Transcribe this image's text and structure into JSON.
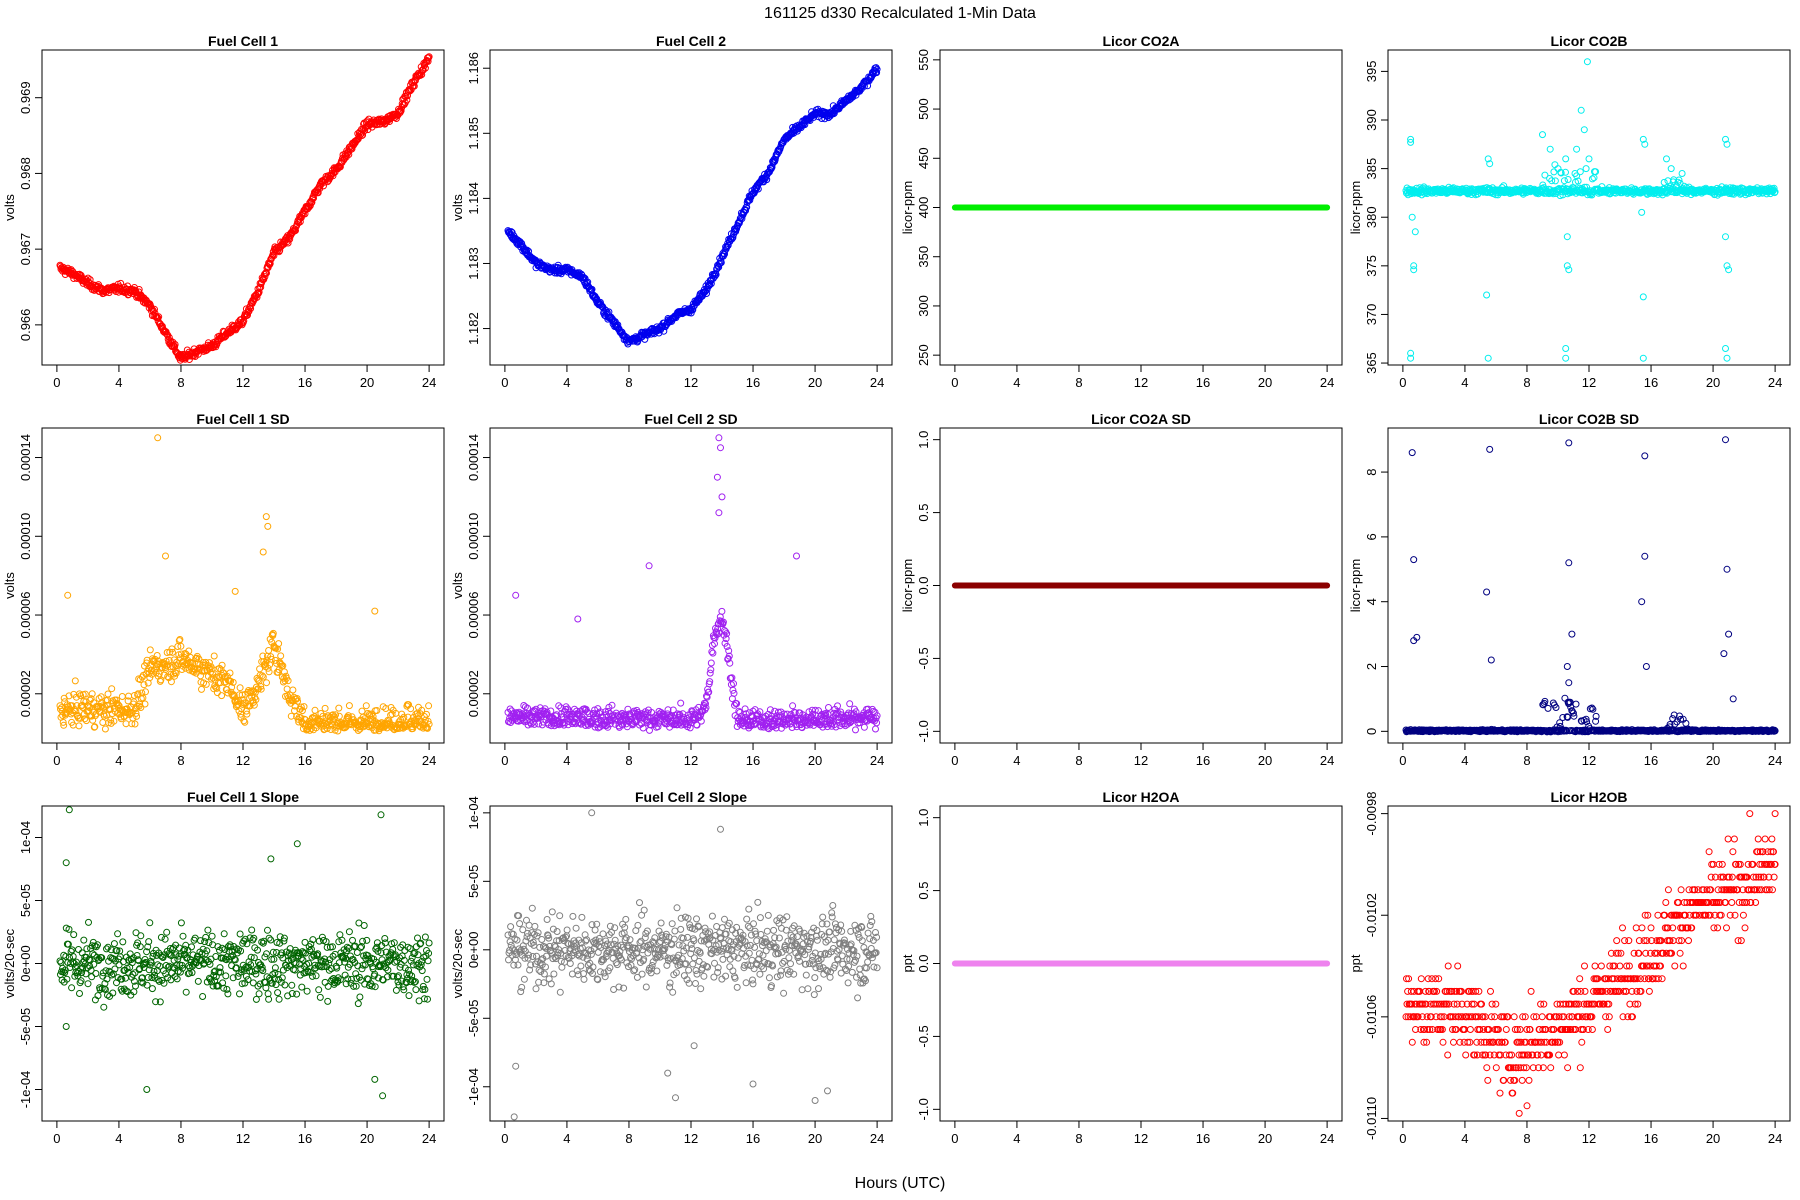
{
  "figure": {
    "suptitle": "161125   d330   Recalculated 1-Min Data",
    "xlabel": "Hours (UTC)"
  },
  "chart_data": [
    {
      "type": "scatter",
      "title": "Fuel Cell 1",
      "ylabel": "volts",
      "color": "#ff0000",
      "marker": "open-circle",
      "xlim": [
        -0.96,
        24.96
      ],
      "ylim": [
        0.96547,
        0.96963
      ],
      "xticks": [
        0,
        4,
        8,
        12,
        16,
        20,
        24
      ],
      "yticks": [
        0.966,
        0.967,
        0.968,
        0.969
      ],
      "ytick_labels": [
        "0.966",
        "0.967",
        "0.968",
        "0.969"
      ],
      "shape": "anchors",
      "noise": 4e-05,
      "anchors": [
        [
          0.2,
          0.96675
        ],
        [
          1,
          0.96668
        ],
        [
          2,
          0.96655
        ],
        [
          3,
          0.96645
        ],
        [
          4,
          0.96648
        ],
        [
          5,
          0.96645
        ],
        [
          6,
          0.96625
        ],
        [
          7,
          0.9659
        ],
        [
          8,
          0.96555
        ],
        [
          9,
          0.96565
        ],
        [
          10,
          0.96572
        ],
        [
          11,
          0.9659
        ],
        [
          12,
          0.96605
        ],
        [
          13,
          0.96645
        ],
        [
          14,
          0.96695
        ],
        [
          15,
          0.96715
        ],
        [
          16,
          0.9675
        ],
        [
          17,
          0.96785
        ],
        [
          18,
          0.96805
        ],
        [
          19,
          0.96835
        ],
        [
          20,
          0.96865
        ],
        [
          21,
          0.96868
        ],
        [
          22,
          0.9688
        ],
        [
          23,
          0.9692
        ],
        [
          24,
          0.96952
        ]
      ]
    },
    {
      "type": "scatter",
      "title": "Fuel Cell 2",
      "ylabel": "volts",
      "color": "#0000ee",
      "marker": "open-circle",
      "xlim": [
        -0.96,
        24.96
      ],
      "ylim": [
        1.18144,
        1.18628
      ],
      "xticks": [
        0,
        4,
        8,
        12,
        16,
        20,
        24
      ],
      "yticks": [
        1.182,
        1.183,
        1.184,
        1.185,
        1.186
      ],
      "ytick_labels": [
        "1.182",
        "1.183",
        "1.184",
        "1.185",
        "1.186"
      ],
      "shape": "anchors",
      "noise": 4e-05,
      "anchors": [
        [
          0.2,
          1.1835
        ],
        [
          1,
          1.1833
        ],
        [
          2,
          1.183
        ],
        [
          3,
          1.1829
        ],
        [
          4,
          1.1829
        ],
        [
          5,
          1.1828
        ],
        [
          6,
          1.1824
        ],
        [
          7,
          1.1821
        ],
        [
          8,
          1.1818
        ],
        [
          9,
          1.1819
        ],
        [
          10,
          1.182
        ],
        [
          11,
          1.1822
        ],
        [
          12,
          1.1823
        ],
        [
          13,
          1.1826
        ],
        [
          14,
          1.1831
        ],
        [
          15,
          1.1836
        ],
        [
          16,
          1.1841
        ],
        [
          17,
          1.1844
        ],
        [
          18,
          1.1849
        ],
        [
          19,
          1.1851
        ],
        [
          20,
          1.1853
        ],
        [
          21,
          1.1853
        ],
        [
          22,
          1.1855
        ],
        [
          23,
          1.1857
        ],
        [
          24,
          1.186
        ]
      ]
    },
    {
      "type": "scatter",
      "title": "Licor CO2A",
      "ylabel": "licor-ppm",
      "color": "#00ee00",
      "marker": "filled-line",
      "xlim": [
        -0.96,
        24.96
      ],
      "ylim": [
        240,
        560
      ],
      "xticks": [
        0,
        4,
        8,
        12,
        16,
        20,
        24
      ],
      "yticks": [
        250,
        300,
        350,
        400,
        450,
        500,
        550
      ],
      "ytick_labels": [
        "250",
        "300",
        "350",
        "400",
        "450",
        "500",
        "550"
      ],
      "shape": "constant",
      "value": 400
    },
    {
      "type": "scatter",
      "title": "Licor CO2B",
      "ylabel": "licor-ppm",
      "color": "#00eeee",
      "marker": "open-circle",
      "xlim": [
        -0.96,
        24.96
      ],
      "ylim": [
        364.8,
        397.2
      ],
      "xticks": [
        0,
        4,
        8,
        12,
        16,
        20,
        24
      ],
      "yticks": [
        365,
        370,
        375,
        380,
        385,
        390,
        395
      ],
      "ytick_labels": [
        "365",
        "370",
        "375",
        "380",
        "385",
        "390",
        "395"
      ],
      "shape": "flat",
      "base": 382.7,
      "noise": 0.25,
      "bursts": [
        [
          9,
          12.5,
          2.5
        ],
        [
          16.5,
          18,
          1.5
        ]
      ],
      "extra": [
        [
          0.5,
          388
        ],
        [
          0.5,
          387.7
        ],
        [
          0.5,
          366
        ],
        [
          0.5,
          365.5
        ],
        [
          0.7,
          375
        ],
        [
          0.7,
          374.6
        ],
        [
          0.8,
          378.5
        ],
        [
          0.6,
          380
        ],
        [
          5.5,
          386
        ],
        [
          5.6,
          385.5
        ],
        [
          5.4,
          372
        ],
        [
          5.5,
          365.5
        ],
        [
          10.5,
          386
        ],
        [
          10.6,
          378
        ],
        [
          10.6,
          375
        ],
        [
          10.7,
          374.6
        ],
        [
          10.5,
          366.5
        ],
        [
          10.5,
          365.5
        ],
        [
          11.5,
          391
        ],
        [
          11.9,
          396
        ],
        [
          11.7,
          389
        ],
        [
          11.2,
          387
        ],
        [
          15.5,
          388
        ],
        [
          15.6,
          387.5
        ],
        [
          15.5,
          371.8
        ],
        [
          15.5,
          365.5
        ],
        [
          15.4,
          380.5
        ],
        [
          20.8,
          388
        ],
        [
          20.9,
          387.5
        ],
        [
          20.8,
          378
        ],
        [
          20.9,
          375
        ],
        [
          21,
          374.6
        ],
        [
          20.8,
          366.5
        ],
        [
          20.9,
          365.5
        ],
        [
          9,
          388.5
        ],
        [
          9.5,
          387
        ],
        [
          10,
          385
        ],
        [
          12,
          386
        ],
        [
          17,
          386
        ],
        [
          17.3,
          385
        ],
        [
          18,
          384.5
        ]
      ]
    },
    {
      "type": "scatter",
      "title": "Fuel Cell 1 SD",
      "ylabel": "volts",
      "color": "#ffa500",
      "marker": "open-circle",
      "xlim": [
        -0.96,
        24.96
      ],
      "ylim": [
        -5e-06,
        0.000155
      ],
      "xticks": [
        0,
        4,
        8,
        12,
        16,
        20,
        24
      ],
      "yticks": [
        2e-05,
        6e-05,
        0.0001,
        0.00014
      ],
      "ytick_labels": [
        "0.00002",
        "0.00006",
        "0.00010",
        "0.00014"
      ],
      "shape": "anchors",
      "noise": 6e-06,
      "anchors": [
        [
          0,
          1.2e-05
        ],
        [
          5,
          1.2e-05
        ],
        [
          6,
          3.2e-05
        ],
        [
          8,
          3.8e-05
        ],
        [
          10,
          3e-05
        ],
        [
          11,
          2.6e-05
        ],
        [
          12,
          1.2e-05
        ],
        [
          13,
          2.5e-05
        ],
        [
          14,
          4.5e-05
        ],
        [
          15,
          2e-05
        ],
        [
          16,
          5e-06
        ],
        [
          18,
          5e-06
        ],
        [
          20,
          5e-06
        ],
        [
          24,
          7e-06
        ]
      ],
      "extra": [
        [
          6.5,
          0.00015
        ],
        [
          0.7,
          7e-05
        ],
        [
          7,
          9e-05
        ],
        [
          13.5,
          0.00011
        ],
        [
          13.6,
          0.000105
        ],
        [
          13.3,
          9.2e-05
        ],
        [
          11.5,
          7.2e-05
        ],
        [
          20.5,
          6.2e-05
        ]
      ]
    },
    {
      "type": "scatter",
      "title": "Fuel Cell 2 SD",
      "ylabel": "volts",
      "color": "#a020f0",
      "marker": "open-circle",
      "xlim": [
        -0.96,
        24.96
      ],
      "ylim": [
        -5e-06,
        0.000155
      ],
      "xticks": [
        0,
        4,
        8,
        12,
        16,
        20,
        24
      ],
      "yticks": [
        2e-05,
        6e-05,
        0.0001,
        0.00014
      ],
      "ytick_labels": [
        "0.00002",
        "0.00006",
        "0.00010",
        "0.00014"
      ],
      "shape": "anchors",
      "noise": 4e-06,
      "anchors": [
        [
          0,
          8e-06
        ],
        [
          12.5,
          7e-06
        ],
        [
          13,
          1.5e-05
        ],
        [
          13.5,
          5e-05
        ],
        [
          14,
          6e-05
        ],
        [
          14.5,
          3.5e-05
        ],
        [
          15,
          6e-06
        ],
        [
          24,
          8e-06
        ]
      ],
      "extra": [
        [
          13.8,
          0.00015
        ],
        [
          13.9,
          0.000145
        ],
        [
          13.7,
          0.00013
        ],
        [
          14,
          0.00012
        ],
        [
          13.8,
          0.000112
        ],
        [
          0.7,
          7e-05
        ],
        [
          9.3,
          8.5e-05
        ],
        [
          18.8,
          9e-05
        ],
        [
          4.7,
          5.8e-05
        ]
      ]
    },
    {
      "type": "scatter",
      "title": "Licor CO2A SD",
      "ylabel": "licor-ppm",
      "color": "#8b0000",
      "marker": "filled-line",
      "xlim": [
        -0.96,
        24.96
      ],
      "ylim": [
        -1.08,
        1.08
      ],
      "xticks": [
        0,
        4,
        8,
        12,
        16,
        20,
        24
      ],
      "yticks": [
        -1,
        -0.5,
        0,
        0.5,
        1
      ],
      "ytick_labels": [
        "-1.0",
        "-0.5",
        "0.0",
        "0.5",
        "1.0"
      ],
      "shape": "constant",
      "value": 0
    },
    {
      "type": "scatter",
      "title": "Licor CO2B SD",
      "ylabel": "licor-ppm",
      "color": "#000080",
      "marker": "open-circle",
      "xlim": [
        -0.96,
        24.96
      ],
      "ylim": [
        -0.36,
        9.36
      ],
      "xticks": [
        0,
        4,
        8,
        12,
        16,
        20,
        24
      ],
      "yticks": [
        0,
        2,
        4,
        6,
        8
      ],
      "ytick_labels": [
        "0",
        "2",
        "4",
        "6",
        "8"
      ],
      "shape": "flat",
      "base": 0.02,
      "noise": 0.02,
      "bursts": [
        [
          9,
          12.5,
          1.0
        ],
        [
          17,
          18.5,
          0.5
        ]
      ],
      "extra": [
        [
          0.6,
          8.6
        ],
        [
          5.6,
          8.7
        ],
        [
          10.7,
          8.9
        ],
        [
          15.6,
          8.5
        ],
        [
          20.8,
          9.0
        ],
        [
          0.7,
          5.3
        ],
        [
          0.7,
          2.8
        ],
        [
          0.9,
          2.9
        ],
        [
          5.4,
          4.3
        ],
        [
          5.7,
          2.2
        ],
        [
          10.7,
          5.2
        ],
        [
          10.6,
          2.0
        ],
        [
          10.9,
          3.0
        ],
        [
          10.7,
          1.5
        ],
        [
          15.6,
          5.4
        ],
        [
          15.4,
          4.0
        ],
        [
          15.7,
          2.0
        ],
        [
          20.9,
          5.0
        ],
        [
          21,
          3.0
        ],
        [
          20.7,
          2.4
        ],
        [
          21.3,
          1.0
        ]
      ]
    },
    {
      "type": "scatter",
      "title": "Fuel Cell 1 Slope",
      "ylabel": "volts/20-sec",
      "color": "#006400",
      "marker": "open-circle",
      "xlim": [
        -0.96,
        24.96
      ],
      "ylim": [
        -0.000125,
        0.000125
      ],
      "xticks": [
        0,
        4,
        8,
        12,
        16,
        20,
        24
      ],
      "yticks": [
        -0.0001,
        -5e-05,
        0,
        5e-05,
        0.0001
      ],
      "ytick_labels": [
        "-1e-04",
        "-5e-05",
        "0e+00",
        "5e-05",
        "1e-04"
      ],
      "shape": "anchors",
      "noise": 1.8e-05,
      "anchors": [
        [
          0,
          0
        ],
        [
          24,
          0
        ]
      ],
      "extra": [
        [
          0.8,
          0.000122
        ],
        [
          5.8,
          -0.0001
        ],
        [
          20.9,
          0.000118
        ],
        [
          20.5,
          -9.2e-05
        ],
        [
          21,
          -0.000105
        ],
        [
          15.5,
          9.5e-05
        ],
        [
          0.6,
          8e-05
        ],
        [
          13.8,
          8.3e-05
        ],
        [
          0.6,
          -5e-05
        ]
      ]
    },
    {
      "type": "scatter",
      "title": "Fuel Cell 2 Slope",
      "ylabel": "volts/20-sec",
      "color": "#7f7f7f",
      "marker": "open-circle",
      "xlim": [
        -0.96,
        24.96
      ],
      "ylim": [
        -0.000125,
        0.000105
      ],
      "xticks": [
        0,
        4,
        8,
        12,
        16,
        20,
        24
      ],
      "yticks": [
        -0.0001,
        -5e-05,
        0,
        5e-05,
        0.0001
      ],
      "ytick_labels": [
        "-1e-04",
        "-5e-05",
        "0e+00",
        "5e-05",
        "1e-04"
      ],
      "shape": "anchors",
      "noise": 1.8e-05,
      "anchors": [
        [
          0,
          0
        ],
        [
          24,
          0
        ]
      ],
      "extra": [
        [
          0.6,
          -0.000122
        ],
        [
          5.6,
          0.0001
        ],
        [
          10.5,
          -9e-05
        ],
        [
          11,
          -0.000108
        ],
        [
          13.9,
          8.8e-05
        ],
        [
          16,
          -9.8e-05
        ],
        [
          20,
          -0.00011
        ],
        [
          20.8,
          -0.000103
        ],
        [
          0.7,
          -8.5e-05
        ],
        [
          12.2,
          -7e-05
        ]
      ]
    },
    {
      "type": "scatter",
      "title": "Licor H2OA",
      "ylabel": "ppt",
      "color": "#ee82ee",
      "marker": "filled-line",
      "xlim": [
        -0.96,
        24.96
      ],
      "ylim": [
        -1.08,
        1.08
      ],
      "xticks": [
        0,
        4,
        8,
        12,
        16,
        20,
        24
      ],
      "yticks": [
        -1,
        -0.5,
        0,
        0.5,
        1
      ],
      "ytick_labels": [
        "-1.0",
        "-0.5",
        "0.0",
        "0.5",
        "1.0"
      ],
      "shape": "constant",
      "value": 0
    },
    {
      "type": "scatter",
      "title": "Licor H2OB",
      "ylabel": "ppt",
      "color": "#ff0000",
      "marker": "open-circle",
      "xlim": [
        -0.96,
        24.96
      ],
      "ylim": [
        -0.01101,
        -0.00977
      ],
      "xticks": [
        0,
        4,
        8,
        12,
        16,
        20,
        24
      ],
      "yticks": [
        -0.011,
        -0.0106,
        -0.0102,
        -0.0098
      ],
      "ytick_labels": [
        "-0.0110",
        "-0.0106",
        "-0.0102",
        "-0.0098"
      ],
      "shape": "anchors",
      "noise": 0.00011,
      "quant": 5e-05,
      "anchors": [
        [
          0,
          -0.01055
        ],
        [
          4,
          -0.01058
        ],
        [
          7,
          -0.01075
        ],
        [
          8,
          -0.0107
        ],
        [
          10,
          -0.01065
        ],
        [
          12,
          -0.01055
        ],
        [
          14,
          -0.01045
        ],
        [
          16,
          -0.01035
        ],
        [
          18,
          -0.0102
        ],
        [
          20,
          -0.01015
        ],
        [
          22,
          -0.01008
        ],
        [
          24,
          -0.01
        ]
      ],
      "extra": [
        [
          24,
          -0.0098
        ],
        [
          7.5,
          -0.01098
        ],
        [
          8,
          -0.01095
        ]
      ]
    }
  ]
}
